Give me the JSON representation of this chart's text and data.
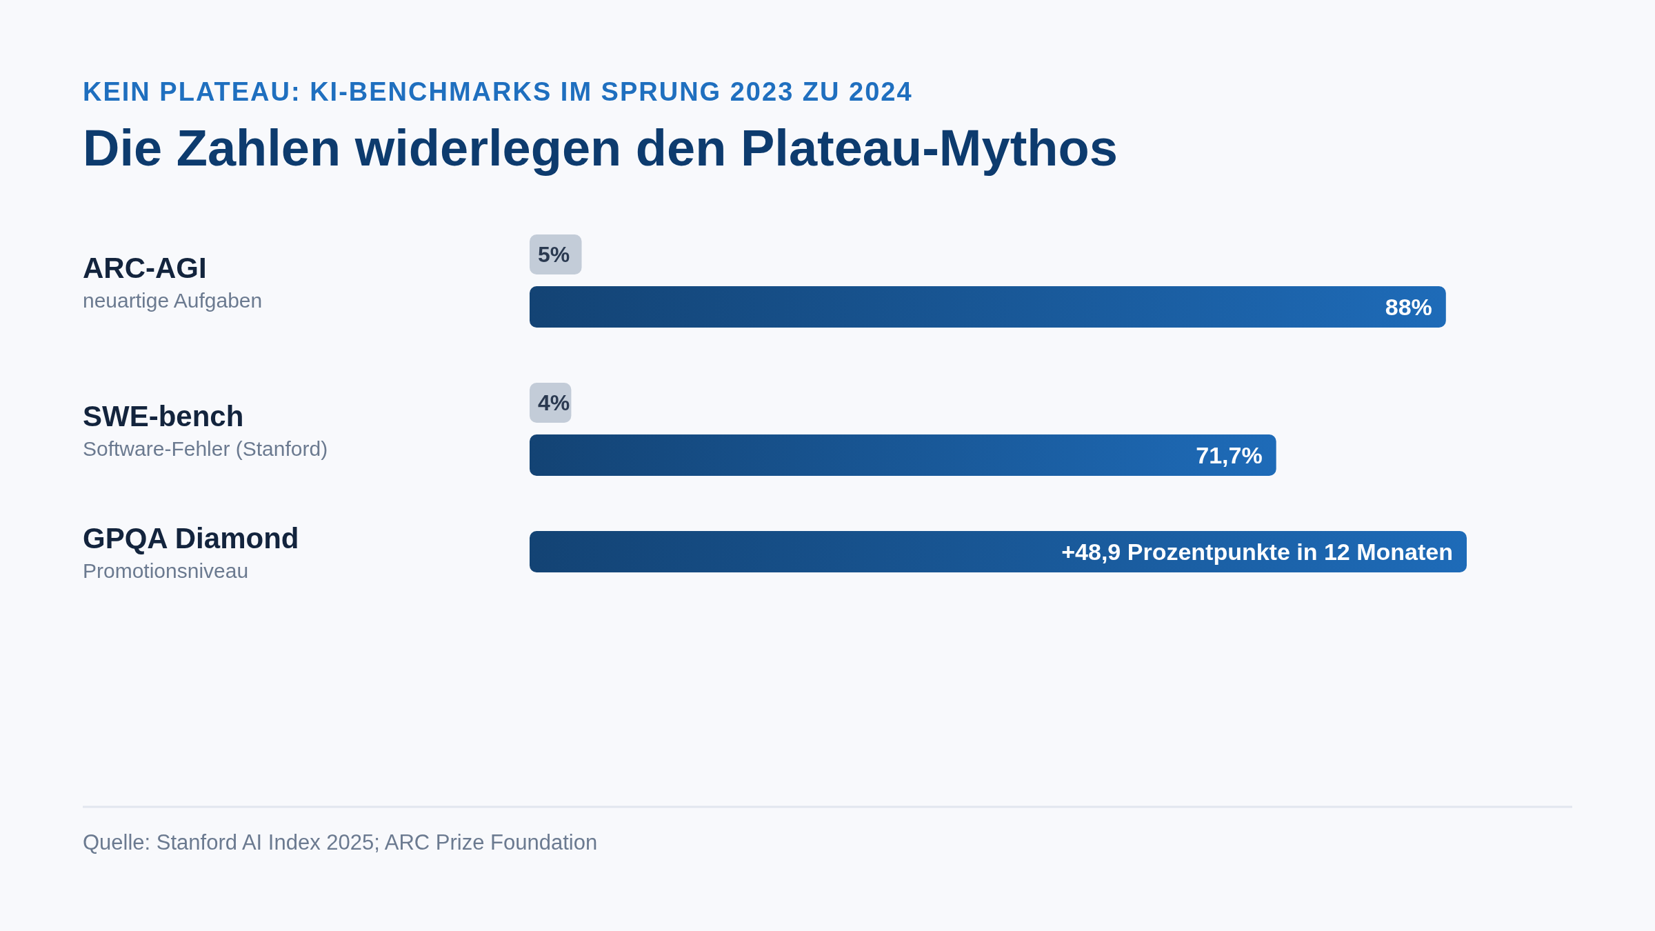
{
  "chart_data": {
    "type": "bar",
    "orientation": "horizontal",
    "subtitle": "KEIN PLATEAU: KI-BENCHMARKS IM SPRUNG 2023 ZU 2024",
    "title": "Die Zahlen widerlegen den Plateau-Mythos",
    "categories": [
      "ARC-AGI\nneuartige Aufgaben",
      "SWE-bench\nSoftware-Fehler (Stanford)",
      "GPQA Diamond\nPromotionsniveau"
    ],
    "series": [
      {
        "color": "#c3ccd8",
        "values": [
          5,
          4,
          null
        ],
        "value_labels": [
          "5%",
          "4%",
          null
        ]
      },
      {
        "color": "#1e6bb8",
        "values": [
          88,
          71.7,
          90
        ],
        "value_labels": [
          "88%",
          "71,7%",
          null
        ]
      }
    ],
    "annotations": [
      {
        "text": "+48,9 Prozentpunkte in 12 Monaten",
        "x": 90,
        "y": "GPQA Diamond\nPromotionsniveau"
      },
      "Quelle: Stanford AI Index 2025; ARC Prize Foundation"
    ]
  }
}
